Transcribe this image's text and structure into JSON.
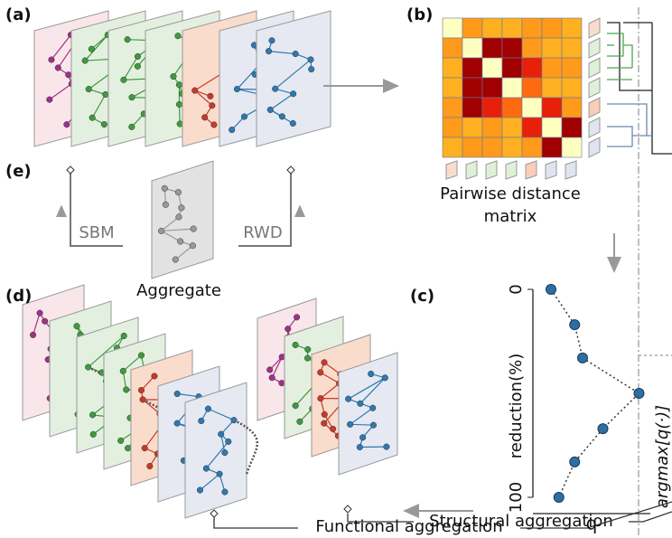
{
  "panels": {
    "a": "(a)",
    "b": "(b)",
    "c": "(c)",
    "d": "(d)",
    "e": "(e)"
  },
  "matrix_caption": [
    "Pairwise distance",
    "matrix"
  ],
  "aggregate_label": "Aggregate",
  "sbm_label": "SBM",
  "rwd_label": "RWD",
  "argmax_label": "argmax[q(·)]",
  "structural_label": "Structural aggregation",
  "functional_label": "Functional aggregation",
  "chart_data": {
    "type": "scatter",
    "xlabel": "q",
    "ylabel": "reduction(%)",
    "x": [
      1.2,
      3.3,
      4.0,
      9.0,
      5.8,
      3.3,
      1.9
    ],
    "values": [
      0,
      17,
      33,
      50,
      67,
      83,
      100
    ],
    "xlim": [
      0,
      10
    ],
    "ylim": [
      0,
      100
    ],
    "yticks": [
      0,
      100
    ],
    "y_inverted": true,
    "color": "#2e6fa3"
  }
}
